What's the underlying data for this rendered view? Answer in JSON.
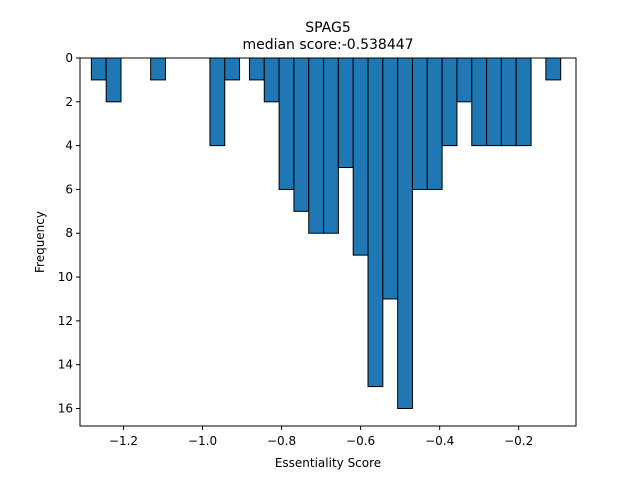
{
  "chart_data": {
    "type": "bar",
    "title": "SPAG5",
    "subtitle": "median score:-0.538447",
    "xlabel": "Essentiality Score",
    "ylabel": "Frequency",
    "xlim": [
      -1.31,
      -0.055
    ],
    "ylim": [
      0,
      16.8
    ],
    "y_inverted": true,
    "grid": false,
    "bar_width": 0.0375,
    "x_ticks": [
      -1.2,
      -1.0,
      -0.8,
      -0.6,
      -0.4,
      -0.2
    ],
    "x_tick_labels": [
      "−1.2",
      "−1.0",
      "−0.8",
      "−0.6",
      "−0.4",
      "−0.2"
    ],
    "y_ticks": [
      0,
      2,
      4,
      6,
      8,
      10,
      12,
      14,
      16
    ],
    "y_tick_labels": [
      "0",
      "2",
      "4",
      "6",
      "8",
      "10",
      "12",
      "14",
      "16"
    ],
    "bins": [
      {
        "x": -1.2625,
        "value": 1
      },
      {
        "x": -1.225,
        "value": 2
      },
      {
        "x": -1.1125,
        "value": 1
      },
      {
        "x": -0.9625,
        "value": 4
      },
      {
        "x": -0.925,
        "value": 1
      },
      {
        "x": -0.8625,
        "value": 1
      },
      {
        "x": -0.825,
        "value": 2
      },
      {
        "x": -0.7875,
        "value": 6
      },
      {
        "x": -0.75,
        "value": 7
      },
      {
        "x": -0.7125,
        "value": 8
      },
      {
        "x": -0.675,
        "value": 8
      },
      {
        "x": -0.6375,
        "value": 5
      },
      {
        "x": -0.6,
        "value": 9
      },
      {
        "x": -0.5625,
        "value": 15
      },
      {
        "x": -0.525,
        "value": 11
      },
      {
        "x": -0.4875,
        "value": 16
      },
      {
        "x": -0.45,
        "value": 6
      },
      {
        "x": -0.4125,
        "value": 6
      },
      {
        "x": -0.375,
        "value": 4
      },
      {
        "x": -0.3375,
        "value": 2
      },
      {
        "x": -0.3,
        "value": 4
      },
      {
        "x": -0.2625,
        "value": 4
      },
      {
        "x": -0.225,
        "value": 4
      },
      {
        "x": -0.1875,
        "value": 4
      },
      {
        "x": -0.1125,
        "value": 1
      }
    ]
  }
}
